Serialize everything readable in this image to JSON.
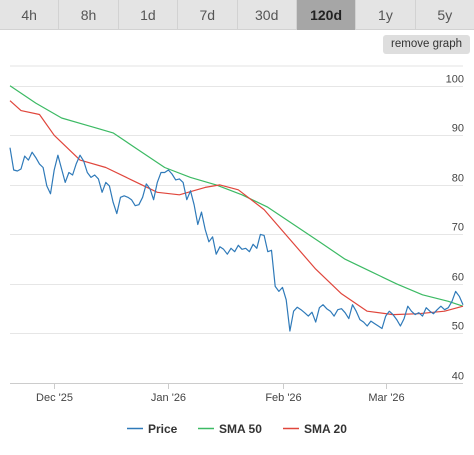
{
  "timeframe_tabs": [
    {
      "label": "4h",
      "active": false
    },
    {
      "label": "8h",
      "active": false
    },
    {
      "label": "1d",
      "active": false
    },
    {
      "label": "7d",
      "active": false
    },
    {
      "label": "30d",
      "active": false
    },
    {
      "label": "120d",
      "active": true
    },
    {
      "label": "1y",
      "active": false
    },
    {
      "label": "5y",
      "active": false
    }
  ],
  "remove_graph_label": "remove graph",
  "chart_data": {
    "type": "line",
    "x_range": [
      "2025-11-19",
      "2026-03-22"
    ],
    "ylim": [
      40,
      104
    ],
    "y_ticks": [
      40,
      50,
      60,
      70,
      80,
      90,
      100
    ],
    "x_ticks": [
      {
        "date": "2025-12-01",
        "label": "Dec '25"
      },
      {
        "date": "2026-01-01",
        "label": "Jan '26"
      },
      {
        "date": "2026-02-01",
        "label": "Feb '26"
      },
      {
        "date": "2026-03-01",
        "label": "Mar '26"
      }
    ],
    "grid": "horizontal",
    "legend": "bottom",
    "series": [
      {
        "name": "Price",
        "color": "#2f7ab9",
        "points": [
          [
            "2025-11-19",
            87.5
          ],
          [
            "2025-11-20",
            83.0
          ],
          [
            "2025-11-21",
            82.8
          ],
          [
            "2025-11-22",
            83.2
          ],
          [
            "2025-11-23",
            85.8
          ],
          [
            "2025-11-24",
            85.0
          ],
          [
            "2025-11-25",
            86.6
          ],
          [
            "2025-11-26",
            85.5
          ],
          [
            "2025-11-27",
            84.2
          ],
          [
            "2025-11-28",
            83.5
          ],
          [
            "2025-11-29",
            79.8
          ],
          [
            "2025-11-30",
            78.2
          ],
          [
            "2025-12-01",
            83.0
          ],
          [
            "2025-12-02",
            86.0
          ],
          [
            "2025-12-03",
            83.2
          ],
          [
            "2025-12-04",
            80.5
          ],
          [
            "2025-12-05",
            82.5
          ],
          [
            "2025-12-06",
            82.0
          ],
          [
            "2025-12-07",
            84.3
          ],
          [
            "2025-12-08",
            86.0
          ],
          [
            "2025-12-09",
            84.8
          ],
          [
            "2025-12-10",
            82.5
          ],
          [
            "2025-12-11",
            81.5
          ],
          [
            "2025-12-12",
            82.0
          ],
          [
            "2025-12-13",
            81.2
          ],
          [
            "2025-12-14",
            78.5
          ],
          [
            "2025-12-15",
            80.5
          ],
          [
            "2025-12-16",
            79.8
          ],
          [
            "2025-12-17",
            76.5
          ],
          [
            "2025-12-18",
            74.2
          ],
          [
            "2025-12-19",
            77.5
          ],
          [
            "2025-12-20",
            77.8
          ],
          [
            "2025-12-21",
            77.5
          ],
          [
            "2025-12-22",
            77.0
          ],
          [
            "2025-12-23",
            75.8
          ],
          [
            "2025-12-24",
            76.0
          ],
          [
            "2025-12-25",
            77.5
          ],
          [
            "2025-12-26",
            80.2
          ],
          [
            "2025-12-27",
            79.2
          ],
          [
            "2025-12-28",
            77.0
          ],
          [
            "2025-12-29",
            80.5
          ],
          [
            "2025-12-30",
            82.5
          ],
          [
            "2025-12-31",
            82.5
          ],
          [
            "2026-01-01",
            83.0
          ],
          [
            "2026-01-02",
            82.2
          ],
          [
            "2026-01-03",
            81.0
          ],
          [
            "2026-01-04",
            81.2
          ],
          [
            "2026-01-05",
            80.5
          ],
          [
            "2026-01-06",
            77.0
          ],
          [
            "2026-01-07",
            78.8
          ],
          [
            "2026-01-08",
            76.0
          ],
          [
            "2026-01-09",
            72.0
          ],
          [
            "2026-01-10",
            74.5
          ],
          [
            "2026-01-11",
            71.0
          ],
          [
            "2026-01-12",
            68.5
          ],
          [
            "2026-01-13",
            69.5
          ],
          [
            "2026-01-14",
            66.0
          ],
          [
            "2026-01-15",
            67.5
          ],
          [
            "2026-01-16",
            67.0
          ],
          [
            "2026-01-17",
            66.0
          ],
          [
            "2026-01-18",
            67.2
          ],
          [
            "2026-01-19",
            66.5
          ],
          [
            "2026-01-20",
            67.8
          ],
          [
            "2026-01-21",
            67.0
          ],
          [
            "2026-01-22",
            67.2
          ],
          [
            "2026-01-23",
            66.5
          ],
          [
            "2026-01-24",
            68.0
          ],
          [
            "2026-01-25",
            67.2
          ],
          [
            "2026-01-26",
            70.0
          ],
          [
            "2026-01-27",
            69.8
          ],
          [
            "2026-01-28",
            66.5
          ],
          [
            "2026-01-29",
            66.8
          ],
          [
            "2026-01-30",
            59.5
          ],
          [
            "2026-01-31",
            58.5
          ],
          [
            "2026-02-01",
            59.3
          ],
          [
            "2026-02-02",
            56.8
          ],
          [
            "2026-02-03",
            50.5
          ],
          [
            "2026-02-04",
            54.5
          ],
          [
            "2026-02-05",
            55.3
          ],
          [
            "2026-02-06",
            54.8
          ],
          [
            "2026-02-07",
            54.2
          ],
          [
            "2026-02-08",
            53.5
          ],
          [
            "2026-02-09",
            54.3
          ],
          [
            "2026-02-10",
            52.3
          ],
          [
            "2026-02-11",
            55.2
          ],
          [
            "2026-02-12",
            55.8
          ],
          [
            "2026-02-13",
            55.0
          ],
          [
            "2026-02-14",
            54.5
          ],
          [
            "2026-02-15",
            53.5
          ],
          [
            "2026-02-16",
            54.8
          ],
          [
            "2026-02-17",
            55.0
          ],
          [
            "2026-02-18",
            54.2
          ],
          [
            "2026-02-19",
            53.0
          ],
          [
            "2026-02-20",
            55.8
          ],
          [
            "2026-02-21",
            54.5
          ],
          [
            "2026-02-22",
            52.8
          ],
          [
            "2026-02-23",
            52.3
          ],
          [
            "2026-02-24",
            51.5
          ],
          [
            "2026-02-25",
            52.5
          ],
          [
            "2026-02-26",
            52.0
          ],
          [
            "2026-02-27",
            51.5
          ],
          [
            "2026-02-28",
            51.0
          ],
          [
            "2026-03-01",
            53.5
          ],
          [
            "2026-03-02",
            54.5
          ],
          [
            "2026-03-03",
            53.8
          ],
          [
            "2026-03-04",
            52.8
          ],
          [
            "2026-03-05",
            51.5
          ],
          [
            "2026-03-06",
            53.0
          ],
          [
            "2026-03-07",
            55.5
          ],
          [
            "2026-03-08",
            54.5
          ],
          [
            "2026-03-09",
            53.8
          ],
          [
            "2026-03-10",
            54.2
          ],
          [
            "2026-03-11",
            53.5
          ],
          [
            "2026-03-12",
            55.2
          ],
          [
            "2026-03-13",
            54.5
          ],
          [
            "2026-03-14",
            54.0
          ],
          [
            "2026-03-15",
            54.8
          ],
          [
            "2026-03-16",
            55.5
          ],
          [
            "2026-03-17",
            54.8
          ],
          [
            "2026-03-18",
            55.2
          ],
          [
            "2026-03-19",
            56.5
          ],
          [
            "2026-03-20",
            58.5
          ],
          [
            "2026-03-21",
            57.5
          ],
          [
            "2026-03-22",
            55.8
          ]
        ]
      },
      {
        "name": "SMA 50",
        "color": "#3cba64",
        "points": [
          [
            "2025-11-19",
            100.0
          ],
          [
            "2025-11-26",
            96.5
          ],
          [
            "2025-12-03",
            93.5
          ],
          [
            "2025-12-10",
            92.0
          ],
          [
            "2025-12-17",
            90.5
          ],
          [
            "2025-12-24",
            87.0
          ],
          [
            "2025-12-31",
            83.5
          ],
          [
            "2026-01-07",
            81.5
          ],
          [
            "2026-01-14",
            80.0
          ],
          [
            "2026-01-21",
            78.0
          ],
          [
            "2026-01-28",
            75.5
          ],
          [
            "2026-02-04",
            72.0
          ],
          [
            "2026-02-11",
            68.5
          ],
          [
            "2026-02-18",
            65.0
          ],
          [
            "2026-02-25",
            62.5
          ],
          [
            "2026-03-04",
            60.0
          ],
          [
            "2026-03-11",
            57.8
          ],
          [
            "2026-03-18",
            56.5
          ],
          [
            "2026-03-22",
            55.5
          ]
        ]
      },
      {
        "name": "SMA 20",
        "color": "#e0463c",
        "points": [
          [
            "2025-11-19",
            97.0
          ],
          [
            "2025-11-22",
            95.0
          ],
          [
            "2025-11-27",
            94.2
          ],
          [
            "2025-12-01",
            90.0
          ],
          [
            "2025-12-08",
            85.0
          ],
          [
            "2025-12-15",
            83.5
          ],
          [
            "2025-12-22",
            81.0
          ],
          [
            "2025-12-29",
            78.5
          ],
          [
            "2026-01-04",
            78.0
          ],
          [
            "2026-01-11",
            79.5
          ],
          [
            "2026-01-15",
            80.0
          ],
          [
            "2026-01-20",
            79.0
          ],
          [
            "2026-01-27",
            75.0
          ],
          [
            "2026-02-03",
            69.0
          ],
          [
            "2026-02-10",
            63.0
          ],
          [
            "2026-02-17",
            58.0
          ],
          [
            "2026-02-24",
            54.5
          ],
          [
            "2026-03-03",
            53.8
          ],
          [
            "2026-03-10",
            54.0
          ],
          [
            "2026-03-17",
            54.5
          ],
          [
            "2026-03-22",
            55.5
          ]
        ]
      }
    ]
  }
}
